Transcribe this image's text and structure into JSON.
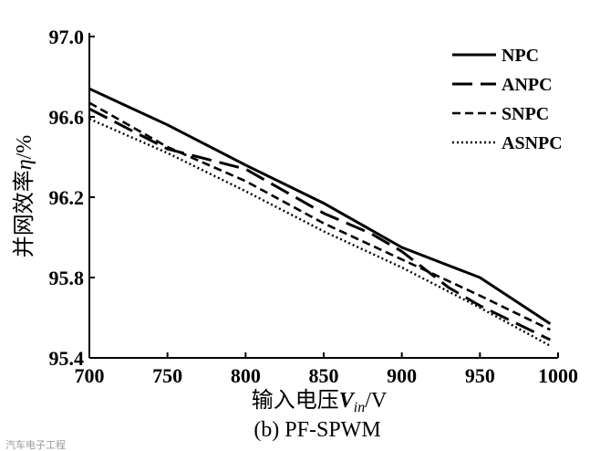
{
  "chart_data": {
    "type": "line",
    "title": "",
    "xlabel": "输入电压",
    "xlabel_symbol": "V",
    "xlabel_subscript": "in",
    "xlabel_unit": "/V",
    "ylabel": "并网效率",
    "ylabel_symbol": "η",
    "ylabel_unit": "/%",
    "xlim": [
      700,
      1000
    ],
    "ylim": [
      95.4,
      97.0
    ],
    "x_ticks": [
      "700",
      "750",
      "800",
      "850",
      "900",
      "950",
      "1000"
    ],
    "y_ticks": [
      "95.4",
      "95.8",
      "96.2",
      "96.6",
      "97.0"
    ],
    "caption": "(b) PF-SPWM",
    "grid": false,
    "legend_position": "top-right",
    "series": [
      {
        "name": "NPC",
        "dash": "solid",
        "x": [
          700,
          750,
          800,
          850,
          900,
          950,
          995
        ],
        "y": [
          96.74,
          96.56,
          96.36,
          96.17,
          95.95,
          95.8,
          95.57
        ]
      },
      {
        "name": "ANPC",
        "dash": "longdash",
        "x": [
          700,
          750,
          780,
          800,
          850,
          880,
          900,
          930,
          950,
          995
        ],
        "y": [
          96.64,
          96.44,
          96.38,
          96.34,
          96.12,
          96.02,
          95.93,
          95.75,
          95.66,
          95.49
        ]
      },
      {
        "name": "SNPC",
        "dash": "shortdash",
        "x": [
          700,
          750,
          800,
          850,
          900,
          950,
          995
        ],
        "y": [
          96.67,
          96.45,
          96.28,
          96.07,
          95.89,
          95.71,
          95.54
        ]
      },
      {
        "name": "ASNPC",
        "dash": "dotted",
        "x": [
          700,
          750,
          800,
          850,
          900,
          950,
          995
        ],
        "y": [
          96.59,
          96.42,
          96.23,
          96.03,
          95.85,
          95.65,
          95.46
        ]
      }
    ]
  },
  "watermark": "汽车电子工程"
}
